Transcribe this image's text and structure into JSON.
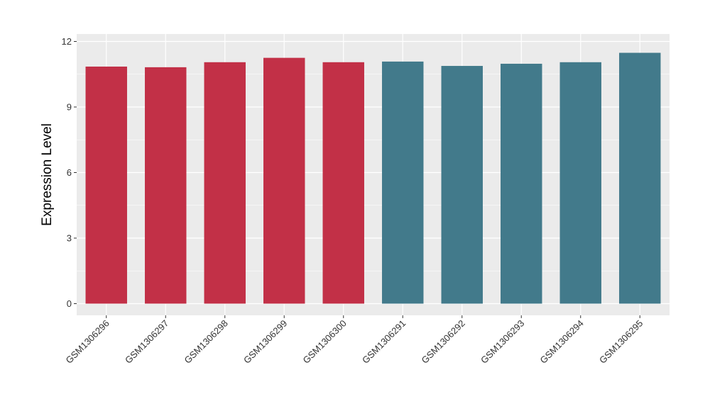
{
  "chart_data": {
    "type": "bar",
    "title": "",
    "xlabel": "",
    "ylabel": "Expression Level",
    "ylim": [
      0,
      12
    ],
    "yticks": [
      0,
      3,
      6,
      9,
      12
    ],
    "grid": true,
    "legend": "none",
    "categories": [
      "GSM1306296",
      "GSM1306297",
      "GSM1306298",
      "GSM1306299",
      "GSM1306300",
      "GSM1306291",
      "GSM1306292",
      "GSM1306293",
      "GSM1306294",
      "GSM1306295"
    ],
    "values": [
      10.85,
      10.82,
      11.05,
      11.25,
      11.05,
      11.08,
      10.88,
      10.98,
      11.05,
      11.48
    ],
    "groups": [
      {
        "color": "#c23047",
        "members": [
          "GSM1306296",
          "GSM1306297",
          "GSM1306298",
          "GSM1306299",
          "GSM1306300"
        ]
      },
      {
        "color": "#427a8b",
        "members": [
          "GSM1306291",
          "GSM1306292",
          "GSM1306293",
          "GSM1306294",
          "GSM1306295"
        ]
      }
    ],
    "panel_background": "#ebebeb",
    "gridline_color": "#ffffff"
  }
}
